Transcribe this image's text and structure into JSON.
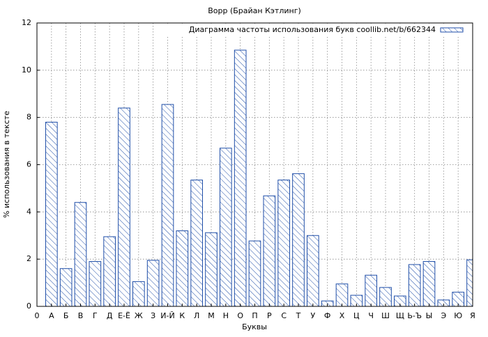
{
  "chart_data": {
    "type": "bar",
    "title": "Ворр (Брайан Кэтлинг)",
    "xlabel": "Буквы",
    "ylabel": "% использования в тексте",
    "x": [
      1,
      2,
      3,
      4,
      5,
      6,
      7,
      8,
      9,
      10,
      11,
      12,
      13,
      14,
      15,
      16,
      17,
      18,
      19,
      20,
      21,
      22,
      23,
      24,
      25,
      26,
      27,
      28,
      29,
      30
    ],
    "series": [
      {
        "name": "Диаграмма частоты использования букв coollib.net/b/662344",
        "color": "#1f4ea8",
        "values": [
          7.8,
          1.6,
          4.4,
          1.9,
          2.95,
          8.4,
          1.05,
          1.95,
          8.55,
          3.2,
          5.35,
          3.12,
          6.7,
          10.85,
          2.77,
          4.68,
          5.35,
          5.62,
          3.0,
          0.23,
          0.95,
          0.47,
          1.32,
          0.8,
          0.44,
          1.77,
          1.9,
          0.27,
          0.6,
          1.97
        ]
      }
    ],
    "xlim": [
      0,
      30
    ],
    "xticks": [
      0,
      {
        "value": 1,
        "label": "А"
      },
      {
        "value": 2,
        "label": "Б"
      },
      {
        "value": 3,
        "label": "В"
      },
      {
        "value": 4,
        "label": "Г"
      },
      {
        "value": 5,
        "label": "Д"
      },
      {
        "value": 6,
        "label": "Е-Ё"
      },
      {
        "value": 7,
        "label": "Ж"
      },
      {
        "value": 8,
        "label": "З"
      },
      {
        "value": 9,
        "label": "И-Й"
      },
      {
        "value": 10,
        "label": "К"
      },
      {
        "value": 11,
        "label": "Л"
      },
      {
        "value": 12,
        "label": "М"
      },
      {
        "value": 13,
        "label": "Н"
      },
      {
        "value": 14,
        "label": "О"
      },
      {
        "value": 15,
        "label": "П"
      },
      {
        "value": 16,
        "label": "Р"
      },
      {
        "value": 17,
        "label": "С"
      },
      {
        "value": 18,
        "label": "Т"
      },
      {
        "value": 19,
        "label": "У"
      },
      {
        "value": 20,
        "label": "Ф"
      },
      {
        "value": 21,
        "label": "Х"
      },
      {
        "value": 22,
        "label": "Ц"
      },
      {
        "value": 23,
        "label": "Ч"
      },
      {
        "value": 24,
        "label": "Ш"
      },
      {
        "value": 25,
        "label": "Щ"
      },
      {
        "value": 26,
        "label": "Ь-Ъ"
      },
      {
        "value": 27,
        "label": "Ы"
      },
      {
        "value": 28,
        "label": "Э"
      },
      {
        "value": 29,
        "label": "Ю"
      },
      {
        "value": 30,
        "label": "Я"
      }
    ],
    "ylim": [
      0,
      12
    ],
    "yticks": [
      0,
      2,
      4,
      6,
      8,
      10,
      12
    ],
    "grid": true,
    "legend": "upper-right"
  }
}
